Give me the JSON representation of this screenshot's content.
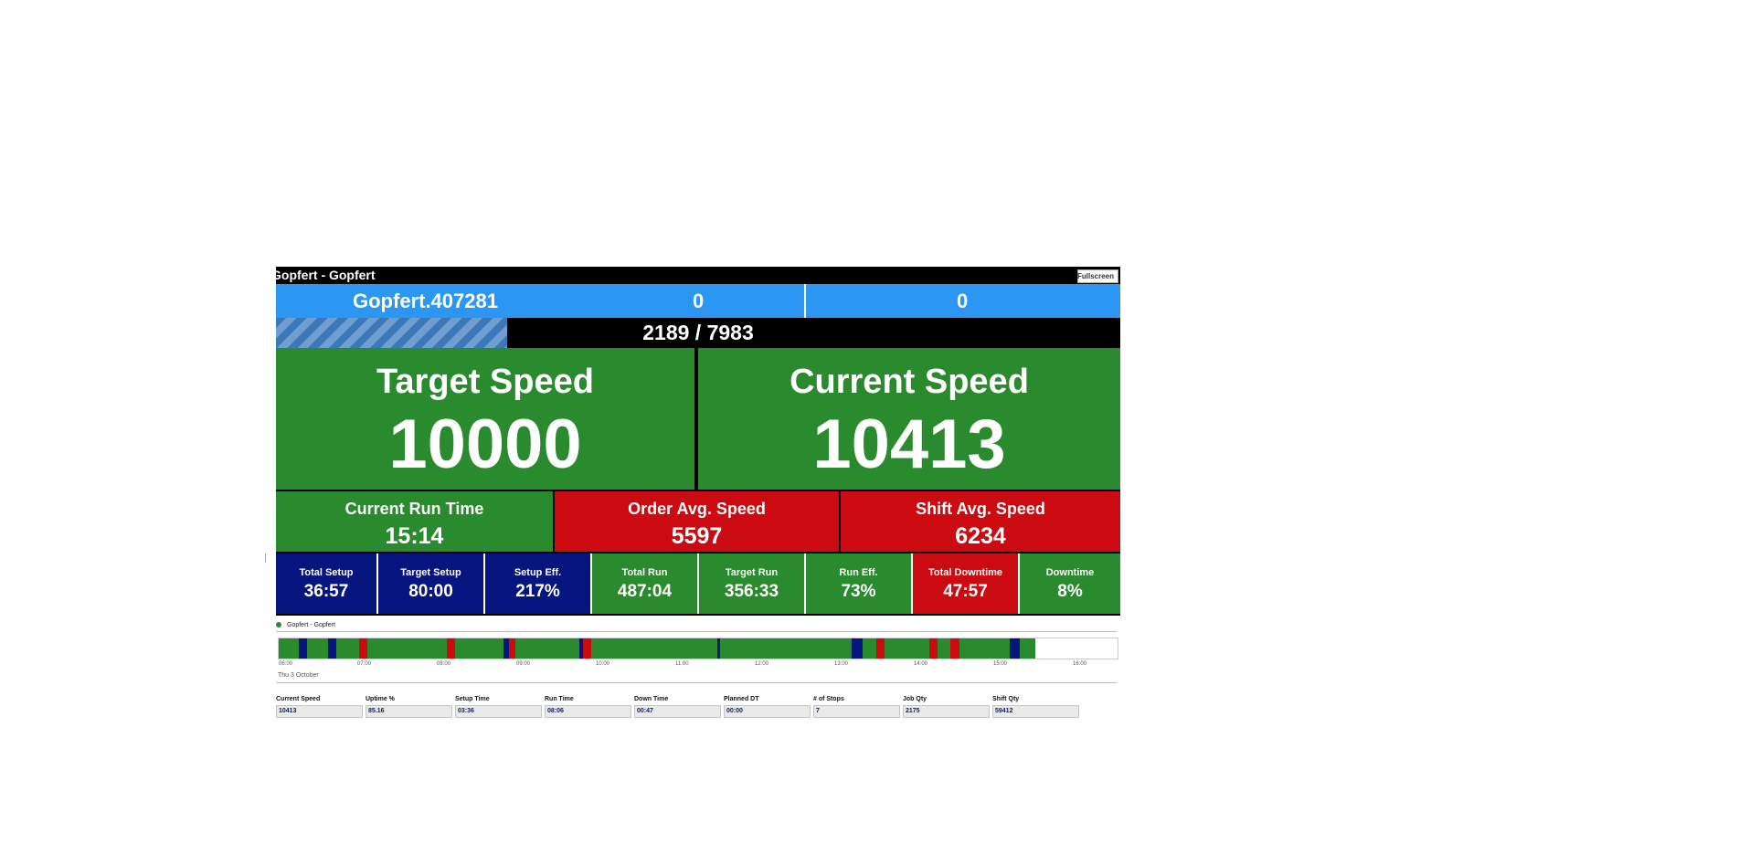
{
  "window": {
    "title": "Gopfert - Gopfert",
    "fullscreen_label": "Fullscreen"
  },
  "header": {
    "job_id": "Gopfert.407281",
    "counter_a": "0",
    "counter_b": "0"
  },
  "progress": {
    "text": "2189 / 7983",
    "fraction": 0.274
  },
  "speeds": {
    "target": {
      "label": "Target Speed",
      "value": "10000"
    },
    "current": {
      "label": "Current Speed",
      "value": "10413"
    }
  },
  "mid": [
    {
      "label": "Current Run Time",
      "value": "15:14"
    },
    {
      "label": "Order Avg. Speed",
      "value": "5597"
    },
    {
      "label": "Shift Avg. Speed",
      "value": "6234"
    }
  ],
  "tiles": [
    {
      "label": "Total Setup",
      "value": "36:57"
    },
    {
      "label": "Target Setup",
      "value": "80:00"
    },
    {
      "label": "Setup Eff.",
      "value": "217%"
    },
    {
      "label": "Total Run",
      "value": "487:04"
    },
    {
      "label": "Target Run",
      "value": "356:33"
    },
    {
      "label": "Run Eff.",
      "value": "73%"
    },
    {
      "label": "Total Downtime",
      "value": "47:57"
    },
    {
      "label": "Downtime",
      "value": "8%"
    }
  ],
  "timeline": {
    "legend": "Gopfert - Gopfert",
    "ticks": [
      "06:00",
      "07:00",
      "08:00",
      "09:00",
      "10:00",
      "11:00",
      "12:00",
      "13:00",
      "14:00",
      "15:00",
      "16:00"
    ],
    "date": "Thu 3 October",
    "state_colors": {
      "run": "#2a8a2e",
      "setup": "#07157f",
      "down": "#cc0a12"
    }
  },
  "stats": [
    {
      "label": "Current Speed",
      "value": "10413"
    },
    {
      "label": "Uptime %",
      "value": "85.16"
    },
    {
      "label": "Setup Time",
      "value": "03:36"
    },
    {
      "label": "Run Time",
      "value": "08:06"
    },
    {
      "label": "Down Time",
      "value": "00:47"
    },
    {
      "label": "Planned DT",
      "value": "00:00"
    },
    {
      "label": "# of Stops",
      "value": "7"
    },
    {
      "label": "Job Qty",
      "value": "2175"
    },
    {
      "label": "Shift Qty",
      "value": "59412"
    }
  ]
}
